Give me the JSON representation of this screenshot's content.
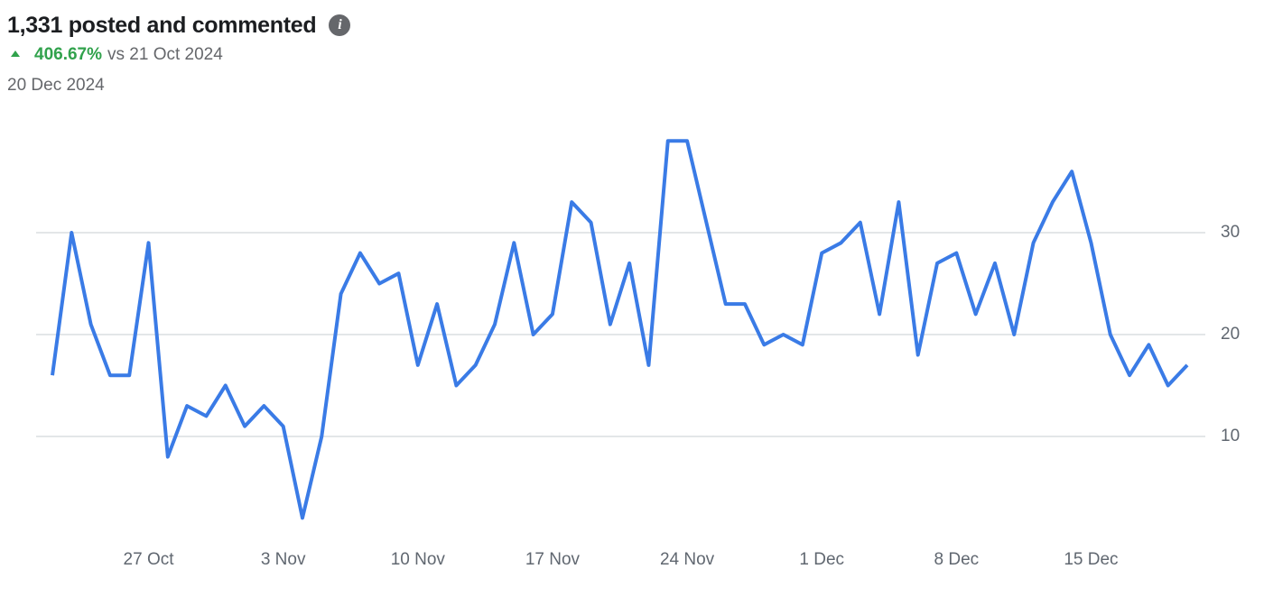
{
  "header": {
    "title": "1,331 posted and commented",
    "change": "406.67%",
    "comparison": "vs 21 Oct 2024",
    "date": "20 Dec 2024"
  },
  "chart_data": {
    "type": "line",
    "categories": [
      "22 Oct",
      "23 Oct",
      "24 Oct",
      "25 Oct",
      "26 Oct",
      "27 Oct",
      "28 Oct",
      "29 Oct",
      "30 Oct",
      "31 Oct",
      "1 Nov",
      "2 Nov",
      "3 Nov",
      "4 Nov",
      "5 Nov",
      "6 Nov",
      "7 Nov",
      "8 Nov",
      "9 Nov",
      "10 Nov",
      "11 Nov",
      "12 Nov",
      "13 Nov",
      "14 Nov",
      "15 Nov",
      "16 Nov",
      "17 Nov",
      "18 Nov",
      "19 Nov",
      "20 Nov",
      "21 Nov",
      "22 Nov",
      "23 Nov",
      "24 Nov",
      "25 Nov",
      "26 Nov",
      "27 Nov",
      "28 Nov",
      "29 Nov",
      "30 Nov",
      "1 Dec",
      "2 Dec",
      "3 Dec",
      "4 Dec",
      "5 Dec",
      "6 Dec",
      "7 Dec",
      "8 Dec",
      "9 Dec",
      "10 Dec",
      "11 Dec",
      "12 Dec",
      "13 Dec",
      "14 Dec",
      "15 Dec",
      "16 Dec",
      "17 Dec",
      "18 Dec",
      "19 Dec",
      "20 Dec"
    ],
    "values": [
      16,
      30,
      21,
      16,
      16,
      29,
      8,
      13,
      12,
      15,
      11,
      13,
      11,
      2,
      10,
      24,
      28,
      25,
      26,
      17,
      23,
      15,
      17,
      21,
      29,
      20,
      22,
      33,
      31,
      21,
      27,
      17,
      39,
      39,
      31,
      23,
      23,
      19,
      20,
      19,
      28,
      29,
      31,
      22,
      33,
      18,
      27,
      28,
      22,
      27,
      20,
      29,
      33,
      36,
      29,
      20,
      16,
      19,
      15,
      17
    ],
    "color": "#3a7be6",
    "xticks": [
      "27 Oct",
      "3 Nov",
      "10 Nov",
      "17 Nov",
      "24 Nov",
      "1 Dec",
      "8 Dec",
      "15 Dec"
    ],
    "ylim": [
      0,
      40
    ],
    "yticks": [
      10,
      20,
      30
    ],
    "grid": true
  }
}
